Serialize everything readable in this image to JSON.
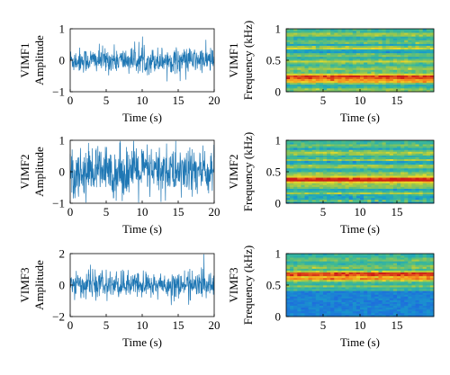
{
  "chart_data": [
    {
      "type": "line",
      "row_label": "VIMF1",
      "ylabel": "Amplitude",
      "xlabel": "Time (s)",
      "xlim": [
        0,
        20
      ],
      "ylim": [
        -1,
        1
      ],
      "xticks": [
        0,
        5,
        10,
        15,
        20
      ],
      "yticks": [
        -1,
        0,
        1
      ],
      "amplitude": 0.36,
      "series": [
        {
          "color": "#1f77b4"
        }
      ]
    },
    {
      "type": "heatmap",
      "row_label": "VIMF1",
      "ylabel": "Frequency (kHz)",
      "xlabel": "Time (s)",
      "xlim": [
        0,
        20
      ],
      "ylim": [
        0,
        1
      ],
      "xticks": [
        5,
        10,
        15
      ],
      "yticks": [
        0,
        0.5,
        1
      ],
      "band_center_khz": 0.22
    },
    {
      "type": "line",
      "row_label": "VIMF2",
      "ylabel": "Amplitude",
      "xlabel": "Time (s)",
      "xlim": [
        0,
        20
      ],
      "ylim": [
        -1,
        1
      ],
      "xticks": [
        0,
        5,
        10,
        15,
        20
      ],
      "yticks": [
        -1,
        0,
        1
      ],
      "amplitude": 0.72,
      "series": [
        {
          "color": "#1f77b4"
        }
      ]
    },
    {
      "type": "heatmap",
      "row_label": "VIMF2",
      "ylabel": "Frequency (kHz)",
      "xlabel": "Time (s)",
      "xlim": [
        0,
        20
      ],
      "ylim": [
        0,
        1
      ],
      "xticks": [
        5,
        10,
        15
      ],
      "yticks": [
        0,
        0.5,
        1
      ],
      "band_center_khz": 0.38
    },
    {
      "type": "line",
      "row_label": "VIMF3",
      "ylabel": "Amplitude",
      "xlabel": "Time (s)",
      "xlim": [
        0,
        20
      ],
      "ylim": [
        -2,
        2
      ],
      "xticks": [
        0,
        5,
        10,
        15,
        20
      ],
      "yticks": [
        -2,
        0,
        2
      ],
      "amplitude": 0.75,
      "series": [
        {
          "color": "#1f77b4"
        }
      ]
    },
    {
      "type": "heatmap",
      "row_label": "VIMF3",
      "ylabel": "Frequency (kHz)",
      "xlabel": "Time (s)",
      "xlim": [
        0,
        20
      ],
      "ylim": [
        0,
        1
      ],
      "xticks": [
        5,
        10,
        15
      ],
      "yticks": [
        0,
        0.5,
        1
      ],
      "band_center_khz": 0.65
    }
  ],
  "colors": {
    "signal": "#1f77b4",
    "axis": "#000000"
  }
}
